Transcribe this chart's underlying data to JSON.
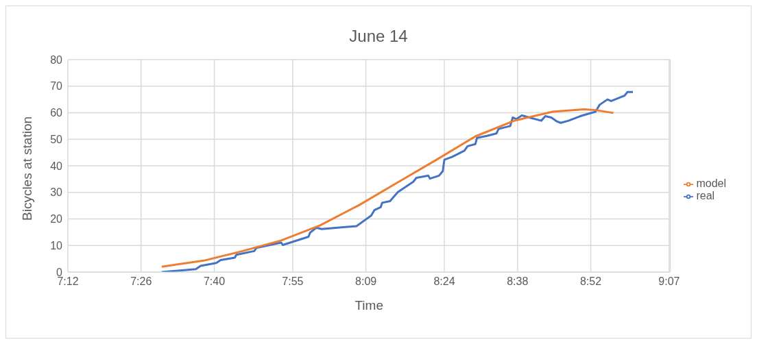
{
  "chart_data": {
    "type": "line",
    "title": "June 14",
    "xlabel": "Time",
    "ylabel": "Bicycles at station",
    "xlim": [
      7.2,
      9.12
    ],
    "xticks": [
      {
        "value": 7.2,
        "label": "7:12"
      },
      {
        "value": 7.4333,
        "label": "7:26"
      },
      {
        "value": 7.6667,
        "label": "7:40"
      },
      {
        "value": 7.9167,
        "label": "7:55"
      },
      {
        "value": 8.15,
        "label": "8:09"
      },
      {
        "value": 8.4,
        "label": "8:24"
      },
      {
        "value": 8.6333,
        "label": "8:38"
      },
      {
        "value": 8.8667,
        "label": "8:52"
      },
      {
        "value": 9.1167,
        "label": "9:07"
      }
    ],
    "ylim": [
      0,
      80
    ],
    "yticks": [
      0,
      10,
      20,
      30,
      40,
      50,
      60,
      70,
      80
    ],
    "grid": true,
    "legend": "right",
    "marker": "none",
    "line_style": "solid",
    "series": [
      {
        "name": "real",
        "color": "#4472c4",
        "x": [
          7.499,
          7.608,
          7.623,
          7.673,
          7.687,
          7.732,
          7.737,
          7.794,
          7.801,
          7.88,
          7.885,
          7.967,
          7.972,
          7.992,
          8.009,
          8.12,
          8.153,
          8.167,
          8.177,
          8.197,
          8.202,
          8.227,
          8.239,
          8.252,
          8.301,
          8.311,
          8.349,
          8.354,
          8.383,
          8.395,
          8.4,
          8.425,
          8.464,
          8.474,
          8.499,
          8.504,
          8.536,
          8.566,
          8.573,
          8.61,
          8.618,
          8.63,
          8.647,
          8.665,
          8.709,
          8.722,
          8.741,
          8.759,
          8.771,
          8.796,
          8.833,
          8.882,
          8.895,
          8.92,
          8.932,
          8.974,
          8.984,
          9.001
        ],
        "values": [
          0,
          1.1,
          2.3,
          3.4,
          4.5,
          5.4,
          6.5,
          7.9,
          9.1,
          11.1,
          10.2,
          13.3,
          14.8,
          16.7,
          16.2,
          17.3,
          20.1,
          21.3,
          23.3,
          24.4,
          26.1,
          26.7,
          28.4,
          30.1,
          34,
          35.5,
          36.3,
          35.2,
          36.3,
          38,
          42.3,
          43.4,
          45.7,
          47.4,
          48.2,
          50.5,
          51.3,
          52.2,
          53.9,
          55,
          58.2,
          57.6,
          59,
          58.4,
          57,
          58.7,
          58.2,
          56.7,
          56.2,
          57,
          58.7,
          60.4,
          63,
          65,
          64.4,
          66.4,
          67.8,
          67.8
        ]
      },
      {
        "name": "model",
        "color": "#ed7d31",
        "x": [
          7.499,
          7.633,
          7.757,
          7.88,
          8.004,
          8.128,
          8.252,
          8.375,
          8.499,
          8.623,
          8.746,
          8.845,
          8.882,
          8.939
        ],
        "values": [
          2,
          4.3,
          7.9,
          11.9,
          17.6,
          25.2,
          33.8,
          42.3,
          51.1,
          57,
          60.4,
          61.3,
          61,
          59.9
        ]
      }
    ]
  }
}
